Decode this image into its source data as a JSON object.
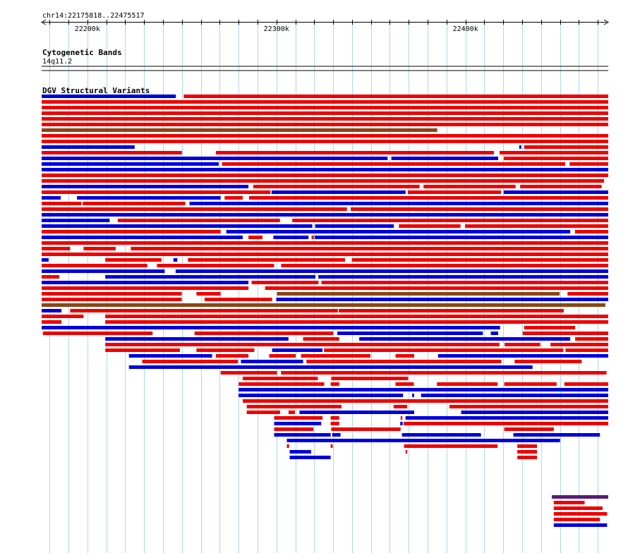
{
  "header": {
    "locus": "chr14:22175818..22475517"
  },
  "colors": {
    "gain": "#ee0000",
    "loss": "#0000dd",
    "inversion": "#8b4513",
    "complex": "#5a1a7a",
    "grid": "#a8d8ee"
  },
  "chart_data": {
    "type": "genome-track",
    "title": "chr14:22175818..22475517",
    "xlim": [
      22175818,
      22475517
    ],
    "ticks": [
      {
        "pos": 22200000,
        "label": "22200k"
      },
      {
        "pos": 22300000,
        "label": "22300k"
      },
      {
        "pos": 22400000,
        "label": "22400k"
      }
    ],
    "cytoband_track": {
      "title": "Cytogenetic Bands",
      "band": "14q11.2"
    },
    "variant_track": {
      "title": "DGV Structural Variants",
      "rows": [
        [
          [
            "loss",
            22175818,
            22246800
          ],
          [
            "gain",
            22251000,
            22475517
          ]
        ],
        [
          [
            "gain",
            22175818,
            22475517
          ]
        ],
        [
          [
            "gain",
            22175818,
            22475517
          ]
        ],
        [
          [
            "gain",
            22175818,
            22475517
          ]
        ],
        [
          [
            "gain",
            22175818,
            22475517
          ]
        ],
        [
          [
            "gain",
            22175818,
            22475517
          ]
        ],
        [
          [
            "inv",
            22175818,
            22385100
          ]
        ],
        [
          [
            "gain",
            22175818,
            22475517
          ]
        ],
        [
          [
            "gain",
            22175818,
            22475517
          ]
        ],
        [
          [
            "loss",
            22175818,
            22225000
          ],
          [
            "loss",
            22428400,
            22429500
          ],
          [
            "gain",
            22431000,
            22475517
          ]
        ],
        [
          [
            "gain",
            22175818,
            22250000
          ],
          [
            "gain",
            22268000,
            22415000
          ],
          [
            "gain",
            22418000,
            22475517
          ]
        ],
        [
          [
            "loss",
            22175818,
            22358800
          ],
          [
            "loss",
            22360800,
            22417300
          ],
          [
            "gain",
            22420300,
            22475517
          ]
        ],
        [
          [
            "loss",
            22175818,
            22269500
          ],
          [
            "gain",
            22271200,
            22452700
          ],
          [
            "gain",
            22455100,
            22475517
          ]
        ],
        [
          [
            "loss",
            22175818,
            22475517
          ]
        ],
        [
          [
            "gain",
            22175818,
            22475517
          ]
        ],
        [
          [
            "gain",
            22175818,
            22473300
          ]
        ],
        [
          [
            "loss",
            22175818,
            22285200
          ],
          [
            "gain",
            22287700,
            22375700
          ],
          [
            "gain",
            22377800,
            22426500
          ],
          [
            "gain",
            22428900,
            22472000
          ]
        ],
        [
          [
            "gain",
            22175818,
            22296800
          ],
          [
            "loss",
            22297400,
            22368300
          ],
          [
            "gain",
            22369500,
            22418800
          ],
          [
            "loss",
            22420200,
            22475517
          ]
        ],
        [
          [
            "loss",
            22175818,
            22185900
          ],
          [
            "loss",
            22194500,
            22270500
          ],
          [
            "gain",
            22272600,
            22282200
          ],
          [
            "gain",
            22285500,
            22475517
          ]
        ],
        [
          [
            "gain",
            22175818,
            22196900
          ],
          [
            "gain",
            22197500,
            22251800
          ],
          [
            "loss",
            22254000,
            22475517
          ]
        ],
        [
          [
            "gain",
            22175818,
            22337300
          ],
          [
            "gain",
            22339300,
            22475517
          ]
        ],
        [
          [
            "loss",
            22175818,
            22475517
          ]
        ],
        [
          [
            "loss",
            22175818,
            22211800
          ],
          [
            "gain",
            22216100,
            22301900
          ],
          [
            "gain",
            22308400,
            22475517
          ]
        ],
        [
          [
            "loss",
            22175818,
            22319000
          ],
          [
            "loss",
            22320500,
            22362100
          ],
          [
            "gain",
            22364800,
            22397400
          ],
          [
            "gain",
            22399800,
            22475517
          ]
        ],
        [
          [
            "gain",
            22175818,
            22270500
          ],
          [
            "loss",
            22273500,
            22455400
          ],
          [
            "gain",
            22457900,
            22475517
          ]
        ],
        [
          [
            "loss",
            22175818,
            22282200
          ],
          [
            "gain",
            22285200,
            22292600
          ],
          [
            "loss",
            22298400,
            22317000
          ],
          [
            "gain",
            22318600,
            22319800
          ],
          [
            "loss",
            22320300,
            22475517
          ]
        ],
        [
          [
            "gain",
            22175818,
            22475517
          ]
        ],
        [
          [
            "gain",
            22175818,
            22190900
          ],
          [
            "gain",
            22198000,
            22215000
          ],
          [
            "gain",
            22223000,
            22475517
          ]
        ],
        [
          [
            "gain",
            22175818,
            22475517
          ]
        ],
        [
          [
            "loss",
            22175818,
            22179500
          ],
          [
            "gain",
            22209500,
            22239200
          ],
          [
            "loss",
            22245500,
            22247600
          ],
          [
            "gain",
            22253200,
            22336300
          ],
          [
            "gain",
            22339900,
            22475517
          ]
        ],
        [
          [
            "gain",
            22175818,
            22231700
          ],
          [
            "gain",
            22236800,
            22298800
          ],
          [
            "gain",
            22302500,
            22475517
          ]
        ],
        [
          [
            "loss",
            22175818,
            22240900
          ],
          [
            "loss",
            22246700,
            22475517
          ]
        ],
        [
          [
            "gain",
            22175818,
            22185200
          ],
          [
            "loss",
            22209500,
            22320700
          ],
          [
            "loss",
            22322200,
            22475517
          ]
        ],
        [
          [
            "loss",
            22175818,
            22285200
          ],
          [
            "gain",
            22286900,
            22322300
          ],
          [
            "gain",
            22323800,
            22475517
          ]
        ],
        [
          [
            "gain",
            22175818,
            22285200
          ],
          [
            "gain",
            22294000,
            22475517
          ]
        ],
        [
          [
            "gain",
            22175818,
            22249900
          ],
          [
            "gain",
            22257700,
            22270500
          ],
          [
            "inv",
            22300300,
            22449800
          ],
          [
            "gain",
            22454000,
            22475517
          ]
        ],
        [
          [
            "gain",
            22175818,
            22249900
          ],
          [
            "gain",
            22262000,
            22297700
          ],
          [
            "loss",
            22299900,
            22475517
          ]
        ],
        [
          [
            "inv",
            22175818,
            22474000
          ]
        ],
        [
          [
            "loss",
            22175818,
            22186300
          ],
          [
            "gain",
            22190900,
            22332500
          ],
          [
            "gain",
            22333000,
            22452000
          ]
        ],
        [
          [
            "gain",
            22175818,
            22198000
          ],
          [
            "gain",
            22209500,
            22475517
          ]
        ],
        [
          [
            "gain",
            22175818,
            22186300
          ],
          [
            "gain",
            22209500,
            22475517
          ]
        ],
        [
          [
            "loss",
            22175818,
            22418300
          ],
          [
            "gain",
            22431000,
            22458000
          ]
        ],
        [
          [
            "gain",
            22176500,
            22234500
          ],
          [
            "gain",
            22256700,
            22330000
          ],
          [
            "loss",
            22332200,
            22409200
          ],
          [
            "loss",
            22413400,
            22417300
          ],
          [
            "gain",
            22430300,
            22475517
          ]
        ],
        [
          [
            "loss",
            22209500,
            22306400
          ],
          [
            "gain",
            22314100,
            22333200
          ],
          [
            "loss",
            22343800,
            22455400
          ],
          [
            "gain",
            22458000,
            22475517
          ]
        ],
        [
          [
            "gain",
            22209500,
            22418000
          ],
          [
            "gain",
            22420700,
            22439600
          ],
          [
            "gain",
            22445000,
            22475517
          ]
        ],
        [
          [
            "gain",
            22209500,
            22249000
          ],
          [
            "gain",
            22257700,
            22288300
          ],
          [
            "loss",
            22297700,
            22324400
          ],
          [
            "gain",
            22325200,
            22451800
          ],
          [
            "gain",
            22452900,
            22475517
          ]
        ],
        [
          [
            "loss",
            22222000,
            22266000
          ],
          [
            "gain",
            22268000,
            22285200
          ],
          [
            "gain",
            22296200,
            22310200
          ],
          [
            "gain",
            22313000,
            22349700
          ],
          [
            "gain",
            22363000,
            22372900
          ],
          [
            "loss",
            22385500,
            22475517
          ]
        ],
        [
          [
            "gain",
            22229000,
            22279700
          ],
          [
            "loss",
            22281200,
            22314100
          ],
          [
            "gain",
            22315900,
            22419000
          ],
          [
            "gain",
            22426000,
            22461500
          ]
        ],
        [
          [
            "loss",
            22222000,
            22435500
          ]
        ],
        [
          [
            "gain",
            22270500,
            22300300
          ],
          [
            "gain",
            22302400,
            22474600
          ]
        ],
        [
          [
            "gain",
            22282200,
            22321900
          ],
          [
            "gain",
            22329000,
            22369700
          ]
        ],
        [
          [
            "gain",
            22280000,
            22325300
          ],
          [
            "gain",
            22328700,
            22333200
          ],
          [
            "gain",
            22363000,
            22372700
          ],
          [
            "gain",
            22384900,
            22417000
          ],
          [
            "gain",
            22420500,
            22448200
          ],
          [
            "gain",
            22452300,
            22475517
          ]
        ],
        [
          [
            "loss",
            22280000,
            22475517
          ]
        ],
        [
          [
            "loss",
            22280000,
            22367000
          ],
          [
            "loss",
            22371800,
            22372900
          ],
          [
            "loss",
            22376500,
            22475517
          ]
        ],
        [
          [
            "gain",
            22282200,
            22407800
          ],
          [
            "gain",
            22391800,
            22475517
          ]
        ],
        [
          [
            "gain",
            22284300,
            22334400
          ],
          [
            "gain",
            22362000,
            22369200
          ],
          [
            "gain",
            22391500,
            22475517
          ]
        ],
        [
          [
            "gain",
            22284300,
            22301900
          ],
          [
            "gain",
            22306400,
            22309800
          ],
          [
            "loss",
            22312200,
            22372900
          ],
          [
            "loss",
            22397700,
            22475517
          ]
        ],
        [
          [
            "gain",
            22298800,
            22324400
          ],
          [
            "gain",
            22328700,
            22333200
          ],
          [
            "gain",
            22365700,
            22366600
          ],
          [
            "loss",
            22368300,
            22475517
          ]
        ],
        [
          [
            "loss",
            22298800,
            22323700
          ],
          [
            "gain",
            22328700,
            22333200
          ],
          [
            "loss",
            22365500,
            22366800
          ],
          [
            "gain",
            22367300,
            22475517
          ]
        ],
        [
          [
            "gain",
            22298800,
            22319600
          ],
          [
            "gain",
            22329000,
            22365700
          ],
          [
            "gain",
            22420500,
            22446700
          ]
        ],
        [
          [
            "loss",
            22298800,
            22328700
          ],
          [
            "loss",
            22329500,
            22333900
          ],
          [
            "loss",
            22366400,
            22408200
          ],
          [
            "loss",
            22425300,
            22471100
          ]
        ],
        [
          [
            "loss",
            22305500,
            22450000
          ]
        ],
        [
          [
            "gain",
            22305500,
            22306700
          ],
          [
            "gain",
            22328700,
            22329800
          ],
          [
            "gain",
            22367500,
            22417000
          ],
          [
            "gain",
            22427400,
            22437800
          ]
        ],
        [
          [
            "loss",
            22307000,
            22318300
          ],
          [
            "gain",
            22368300,
            22369200
          ],
          [
            "gain",
            22427400,
            22437800
          ]
        ],
        [
          [
            "loss",
            22307000,
            22328700
          ],
          [
            "gain",
            22427400,
            22437800
          ]
        ]
      ],
      "lower_block": [
        [
          "complex",
          22445700,
          22475517
        ],
        [
          "gain",
          22446700,
          22463000
        ],
        [
          "gain",
          22446700,
          22472500
        ],
        [
          "gain",
          22446700,
          22474900
        ],
        [
          "gain",
          22446700,
          22471100
        ],
        [
          "loss",
          22446700,
          22474900
        ]
      ]
    }
  }
}
